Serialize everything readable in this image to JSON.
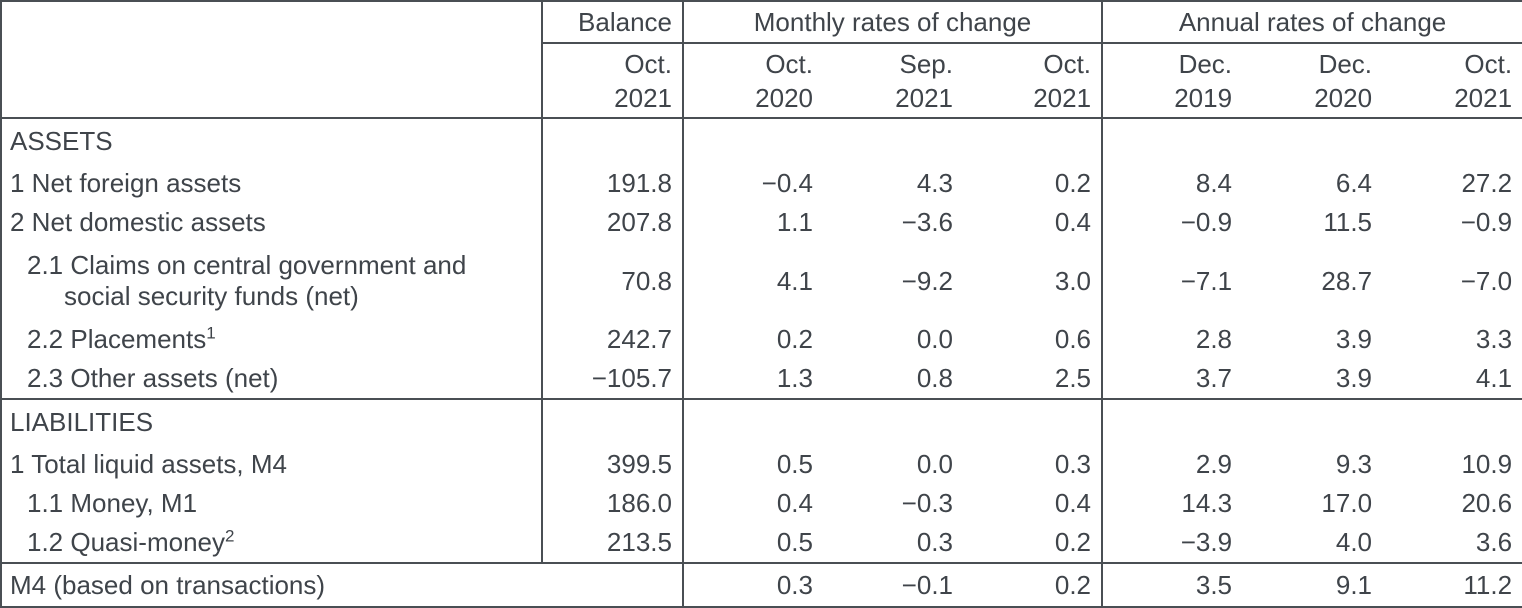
{
  "table": {
    "header": {
      "corner": "",
      "balance_label": "Balance",
      "monthly_group": "Monthly rates of change",
      "annual_group": "Annual rates of change",
      "balance_period": {
        "m": "Oct.",
        "y": "2021"
      },
      "periods": [
        {
          "m": "Oct.",
          "y": "2020"
        },
        {
          "m": "Sep.",
          "y": "2021"
        },
        {
          "m": "Oct.",
          "y": "2021"
        },
        {
          "m": "Dec.",
          "y": "2019"
        },
        {
          "m": "Dec.",
          "y": "2020"
        },
        {
          "m": "Oct.",
          "y": "2021"
        }
      ]
    },
    "rows": [
      {
        "type": "section",
        "label": "ASSETS",
        "cells": [
          "",
          "",
          "",
          "",
          "",
          "",
          ""
        ]
      },
      {
        "type": "item",
        "indent": 0,
        "label": "1 Net foreign assets",
        "cells": [
          "191.8",
          "−0.4",
          "4.3",
          "0.2",
          "8.4",
          "6.4",
          "27.2"
        ]
      },
      {
        "type": "item",
        "indent": 0,
        "label": "2 Net domestic assets",
        "cells": [
          "207.8",
          "1.1",
          "−3.6",
          "0.4",
          "−0.9",
          "11.5",
          "−0.9"
        ]
      },
      {
        "type": "item",
        "indent": 1,
        "wrap": true,
        "label": "2.1 Claims on central government and social security funds (net)",
        "cells": [
          "70.8",
          "4.1",
          "−9.2",
          "3.0",
          "−7.1",
          "28.7",
          "−7.0"
        ]
      },
      {
        "type": "item",
        "indent": 1,
        "label": "2.2 Placements",
        "sup": "1",
        "cells": [
          "242.7",
          "0.2",
          "0.0",
          "0.6",
          "2.8",
          "3.9",
          "3.3"
        ]
      },
      {
        "type": "item",
        "indent": 1,
        "label": "2.3 Other assets (net)",
        "cells": [
          "−105.7",
          "1.3",
          "0.8",
          "2.5",
          "3.7",
          "3.9",
          "4.1"
        ]
      },
      {
        "type": "section",
        "divider": true,
        "label": "LIABILITIES",
        "cells": [
          "",
          "",
          "",
          "",
          "",
          "",
          ""
        ]
      },
      {
        "type": "item",
        "indent": 0,
        "label": "1 Total liquid assets, M4",
        "cells": [
          "399.5",
          "0.5",
          "0.0",
          "0.3",
          "2.9",
          "9.3",
          "10.9"
        ]
      },
      {
        "type": "item",
        "indent": 1,
        "label": "1.1 Money, M1",
        "cells": [
          "186.0",
          "0.4",
          "−0.3",
          "0.4",
          "14.3",
          "17.0",
          "20.6"
        ]
      },
      {
        "type": "item",
        "indent": 1,
        "label": "1.2 Quasi-money",
        "sup": "2",
        "cells": [
          "213.5",
          "0.5",
          "0.3",
          "0.2",
          "−3.9",
          "4.0",
          "3.6"
        ]
      },
      {
        "type": "footer",
        "label": "M4 (based on transactions)",
        "cells": [
          "0.3",
          "−0.1",
          "0.2",
          "3.5",
          "9.1",
          "11.2"
        ]
      }
    ],
    "colors": {
      "text": "#3f444a",
      "grid": "#4a4f54",
      "background": "#ffffff"
    }
  }
}
